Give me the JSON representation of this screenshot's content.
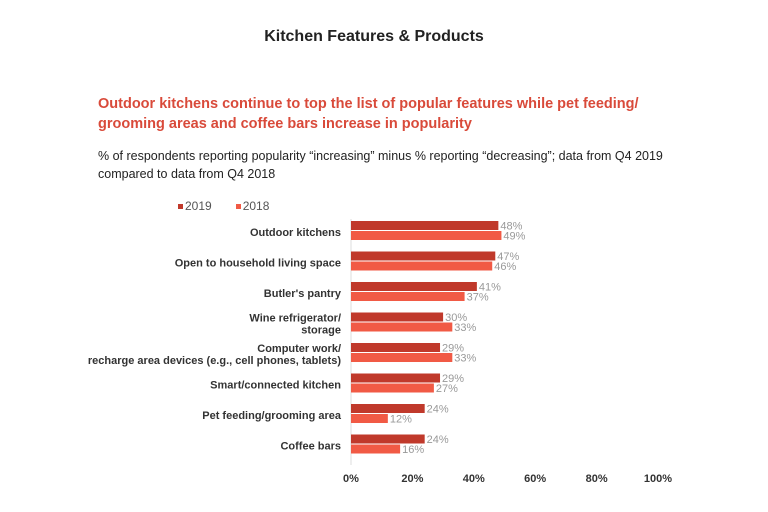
{
  "page": {
    "title": "Kitchen Features & Products"
  },
  "chart_data": {
    "type": "bar",
    "orientation": "horizontal",
    "title": "Outdoor kitchens continue to top the list of popular features while pet feeding/ grooming areas and coffee bars increase in popularity",
    "subtitle": "% of respondents reporting popularity “increasing” minus % reporting “decreasing”; data from Q4 2019 compared to data from Q4 2018",
    "categories": [
      [
        "Outdoor kitchens"
      ],
      [
        "Open to household living space"
      ],
      [
        "Butler's pantry"
      ],
      [
        "Wine refrigerator/",
        "storage"
      ],
      [
        "Computer work/",
        "recharge area devices (e.g., cell phones, tablets)"
      ],
      [
        "Smart/connected kitchen"
      ],
      [
        "Pet feeding/grooming area"
      ],
      [
        "Coffee bars"
      ]
    ],
    "series": [
      {
        "name": "2019",
        "color": "#c0392b",
        "values": [
          48,
          47,
          41,
          30,
          29,
          29,
          24,
          24
        ]
      },
      {
        "name": "2018",
        "color": "#f15a45",
        "values": [
          49,
          46,
          37,
          33,
          33,
          27,
          12,
          16
        ]
      }
    ],
    "data_label_suffix": "%",
    "xlim": [
      0,
      100
    ],
    "x_ticks": [
      "0%",
      "20%",
      "40%",
      "60%",
      "80%",
      "100%"
    ],
    "x_tick_values": [
      0,
      20,
      40,
      60,
      80,
      100
    ],
    "legend_position": "top-left",
    "grid": false
  }
}
